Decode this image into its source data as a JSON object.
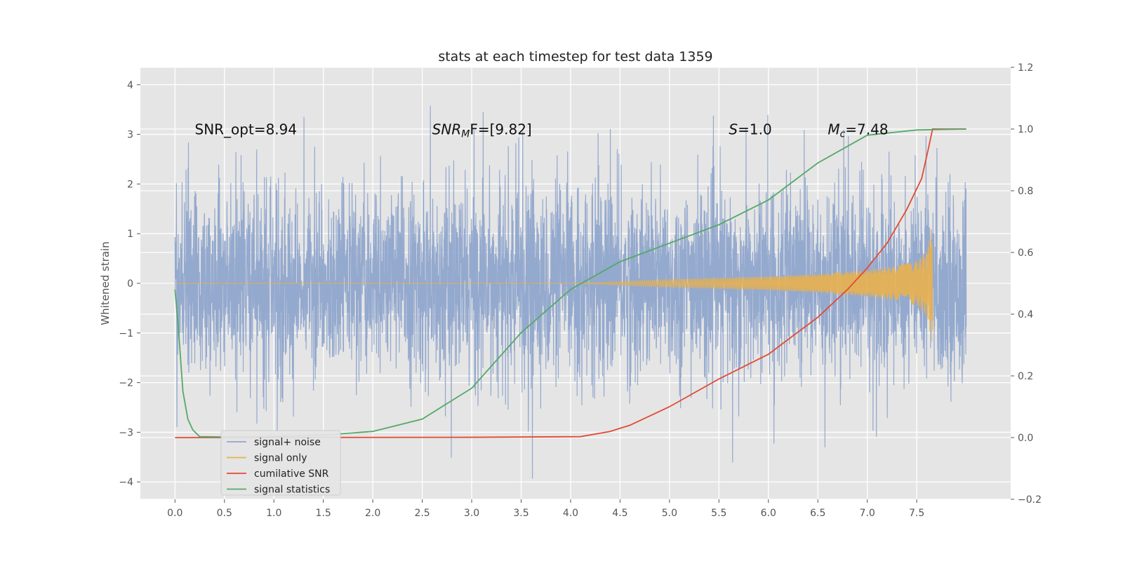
{
  "chart_data": {
    "type": "line",
    "title": "stats at each timestep for test data 1359",
    "xlabel": "",
    "ylabel": "Whitened strain",
    "y2label": "",
    "xlim": [
      -0.35,
      8.45
    ],
    "ylim": [
      -4.35,
      4.35
    ],
    "y2lim": [
      -0.2,
      1.2
    ],
    "xticks": [
      0.0,
      0.5,
      1.0,
      1.5,
      2.0,
      2.5,
      3.0,
      3.5,
      4.0,
      4.5,
      5.0,
      5.5,
      6.0,
      6.5,
      7.0,
      7.5
    ],
    "yticks": [
      -4,
      -3,
      -2,
      -1,
      0,
      1,
      2,
      3,
      4
    ],
    "y2ticks": [
      -0.2,
      0.0,
      0.2,
      0.4,
      0.6,
      0.8,
      1.0,
      1.2
    ],
    "grid": true,
    "legend_position": "lower-left",
    "annotations": [
      {
        "id": "snr-opt",
        "text": "SNR_opt=8.94",
        "x": 0.2,
        "y": 3.1
      },
      {
        "id": "snr-mf",
        "base": "SNR",
        "sub": "M",
        "rest": "F=[9.82]",
        "x": 2.6,
        "y": 3.1
      },
      {
        "id": "s-value",
        "base": "S",
        "rest": "=1.0",
        "x": 5.6,
        "y": 3.1
      },
      {
        "id": "mc-value",
        "base": "M",
        "sub": "c",
        "rest": "=7.48",
        "x": 6.6,
        "y": 3.1
      }
    ],
    "series": [
      {
        "name": "signal+ noise",
        "axis": "left",
        "color": "#8fa5cc",
        "kind": "noise",
        "x_start": 0.0,
        "x_end": 8.0,
        "sample_step": 0.002,
        "std": 1.0,
        "envelope_y": [
          [
            0.0,
            -3.1,
            3.1
          ],
          [
            2.0,
            -3.2,
            3.5
          ],
          [
            2.4,
            -3.3,
            4.0
          ],
          [
            3.6,
            -3.95,
            3.1
          ],
          [
            4.05,
            -3.65,
            3.3
          ],
          [
            5.9,
            -3.8,
            3.4
          ],
          [
            7.65,
            -3.1,
            3.2
          ],
          [
            8.0,
            -3.0,
            2.0
          ]
        ]
      },
      {
        "name": "signal only",
        "axis": "left",
        "color": "#e8b04f",
        "kind": "chirp",
        "x_start": 0.0,
        "x_end": 7.66,
        "amplitude_points": [
          [
            0.0,
            0.0
          ],
          [
            4.0,
            0.0
          ],
          [
            4.4,
            0.03
          ],
          [
            5.0,
            0.08
          ],
          [
            6.0,
            0.14
          ],
          [
            6.5,
            0.19
          ],
          [
            7.0,
            0.27
          ],
          [
            7.3,
            0.35
          ],
          [
            7.5,
            0.45
          ],
          [
            7.6,
            0.65
          ],
          [
            7.66,
            1.25
          ]
        ]
      },
      {
        "name": "cumilative SNR",
        "axis": "right",
        "color": "#e24a33",
        "points": [
          [
            0.0,
            0.0
          ],
          [
            3.0,
            0.001
          ],
          [
            4.1,
            0.003
          ],
          [
            4.4,
            0.02
          ],
          [
            4.6,
            0.04
          ],
          [
            5.0,
            0.1
          ],
          [
            5.5,
            0.19
          ],
          [
            6.0,
            0.27
          ],
          [
            6.5,
            0.39
          ],
          [
            6.8,
            0.48
          ],
          [
            7.0,
            0.55
          ],
          [
            7.2,
            0.63
          ],
          [
            7.4,
            0.74
          ],
          [
            7.55,
            0.84
          ],
          [
            7.62,
            0.94
          ],
          [
            7.66,
            1.0
          ],
          [
            8.0,
            1.0
          ]
        ]
      },
      {
        "name": "signal statistics",
        "axis": "right",
        "color": "#55a868",
        "points": [
          [
            0.0,
            0.48
          ],
          [
            0.04,
            0.33
          ],
          [
            0.08,
            0.15
          ],
          [
            0.13,
            0.06
          ],
          [
            0.18,
            0.025
          ],
          [
            0.25,
            0.003
          ],
          [
            0.5,
            0.002
          ],
          [
            1.0,
            0.004
          ],
          [
            1.5,
            0.008
          ],
          [
            2.0,
            0.02
          ],
          [
            2.5,
            0.06
          ],
          [
            3.0,
            0.16
          ],
          [
            3.5,
            0.34
          ],
          [
            4.0,
            0.48
          ],
          [
            4.5,
            0.57
          ],
          [
            5.0,
            0.63
          ],
          [
            5.5,
            0.69
          ],
          [
            6.0,
            0.77
          ],
          [
            6.5,
            0.89
          ],
          [
            7.0,
            0.98
          ],
          [
            7.5,
            0.997
          ],
          [
            8.0,
            1.0
          ]
        ]
      }
    ]
  }
}
